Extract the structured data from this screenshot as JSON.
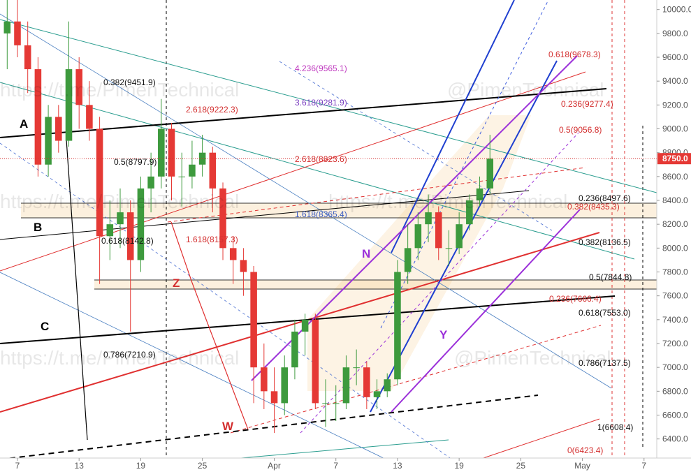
{
  "chart_data": {
    "type": "candlestick",
    "x": [
      -1,
      0,
      1,
      2,
      3,
      4,
      5,
      6,
      7,
      8,
      9,
      10,
      11,
      12,
      13,
      14,
      15,
      16,
      17,
      18,
      19,
      20,
      21,
      22,
      23,
      24,
      25,
      26,
      27,
      28,
      29,
      30,
      31,
      32,
      33,
      34,
      35,
      36,
      37,
      38,
      39,
      40,
      41,
      42,
      43,
      44,
      45,
      46
    ],
    "open": [
      9800,
      9900,
      9700,
      9500,
      8700,
      9100,
      8900,
      9500,
      9200,
      9000,
      8100,
      8200,
      8300,
      7900,
      8500,
      8600,
      9000,
      8600,
      8600,
      8700,
      8800,
      8500,
      8000,
      7900,
      7800,
      7000,
      6800,
      6700,
      7000,
      7300,
      7400,
      6700,
      6700,
      6700,
      7000,
      7000,
      6750,
      6800,
      6900,
      7800,
      8000,
      8200,
      8300,
      8000,
      8000,
      8200,
      8400,
      8500
    ],
    "high": [
      10100,
      10100,
      9900,
      9600,
      9200,
      9200,
      9900,
      9600,
      9400,
      9100,
      8400,
      8500,
      8400,
      8600,
      8800,
      9250,
      9050,
      8800,
      8900,
      8950,
      8850,
      8550,
      8100,
      8000,
      7850,
      7200,
      7000,
      7100,
      7400,
      7450,
      7450,
      6900,
      6850,
      7100,
      7150,
      7050,
      6900,
      6950,
      7900,
      8200,
      8300,
      8450,
      8350,
      8150,
      8300,
      8450,
      8600,
      8950
    ],
    "low": [
      9500,
      9600,
      9300,
      8600,
      8600,
      8800,
      8850,
      9000,
      8900,
      7700,
      7900,
      8000,
      7300,
      7800,
      8300,
      8500,
      8400,
      8350,
      8500,
      8600,
      8300,
      7900,
      7700,
      7600,
      6700,
      6650,
      6450,
      6600,
      6900,
      7100,
      6650,
      6500,
      6550,
      6650,
      6850,
      6650,
      6650,
      6750,
      6850,
      7700,
      7900,
      8050,
      7900,
      7850,
      7950,
      8150,
      8350,
      8450
    ],
    "close": [
      9900,
      9700,
      9500,
      8700,
      9100,
      8900,
      9500,
      9200,
      9000,
      8100,
      8200,
      8300,
      7900,
      8500,
      8600,
      9000,
      8600,
      8600,
      8700,
      8800,
      8500,
      8000,
      7900,
      7800,
      7000,
      6800,
      6700,
      7000,
      7300,
      7400,
      6700,
      6700,
      6700,
      7000,
      7000,
      6750,
      6800,
      6900,
      7800,
      8000,
      8200,
      8300,
      8000,
      8000,
      8200,
      8400,
      8500,
      8750
    ],
    "up_color": "#3d9a3d",
    "down_color": "#e53935",
    "xlim": [
      -1.7,
      62.24
    ],
    "xticks": [
      {
        "value": 0,
        "label": "7"
      },
      {
        "value": 6,
        "label": "13"
      },
      {
        "value": 12,
        "label": "19"
      },
      {
        "value": 18,
        "label": "25"
      },
      {
        "value": 25,
        "label": "Apr"
      },
      {
        "value": 31,
        "label": "7"
      },
      {
        "value": 37,
        "label": "13"
      },
      {
        "value": 43,
        "label": "19"
      },
      {
        "value": 49,
        "label": "25"
      },
      {
        "value": 55,
        "label": "May"
      },
      {
        "value": 61,
        "label": "7"
      }
    ],
    "ylim": [
      6240,
      10080
    ],
    "yticks": [
      {
        "value": 6400,
        "label": "6400.0"
      },
      {
        "value": 6600,
        "label": "6600.0"
      },
      {
        "value": 6800,
        "label": "6800.0"
      },
      {
        "value": 7000,
        "label": "7000.0"
      },
      {
        "value": 7200,
        "label": "7200.0"
      },
      {
        "value": 7400,
        "label": "7400.0"
      },
      {
        "value": 7600,
        "label": "7600.0"
      },
      {
        "value": 7800,
        "label": "7800.0"
      },
      {
        "value": 8000,
        "label": "8000.0"
      },
      {
        "value": 8200,
        "label": "8200.0"
      },
      {
        "value": 8400,
        "label": "8400.0"
      },
      {
        "value": 8600,
        "label": "8600.0"
      },
      {
        "value": 8800,
        "label": "8800.0"
      },
      {
        "value": 9000,
        "label": "9000.0"
      },
      {
        "value": 9200,
        "label": "9200.0"
      },
      {
        "value": 9400,
        "label": "9400.0"
      },
      {
        "value": 9600,
        "label": "9600.0"
      },
      {
        "value": 9800,
        "label": "9800.0"
      },
      {
        "value": 10000,
        "label": "10000.0"
      }
    ],
    "last_price": {
      "value": 8750,
      "label": "8750.0"
    },
    "annotations": [
      "0.382(9451.9)",
      "2.618(9222.3)",
      "0.5(8797.9)",
      "2.618(8823.6)",
      "4.236(9565.1)",
      "3.618(9281.9)",
      "1.618(8365.4)",
      "1.618(8157.3)",
      "0.618(8142.8)",
      "0.786(7210.9)",
      "0.618(9678.3)",
      "0.236(9277.4)",
      "0.5(9056.8)",
      "0.236(8497.6)",
      "0.382(8435.3)",
      "0.382(8136.5)",
      "0.5(7844.8)",
      "0.236(7666.4)",
      "0.618(7553.0)",
      "0.786(7137.5)",
      "1(6608.4)",
      "0(6423.4)"
    ],
    "letters": [
      "A",
      "B",
      "C",
      "N",
      "Y",
      "Z",
      "W"
    ],
    "watermarks": [
      "https://t.me/PimenTechnical",
      "https://t.me/PimenTechnical",
      "https://t.me/PimenTechnical",
      "https://t.me/PimenTechnical",
      "@PimenTechnical",
      "@PimenTechnical"
    ]
  }
}
